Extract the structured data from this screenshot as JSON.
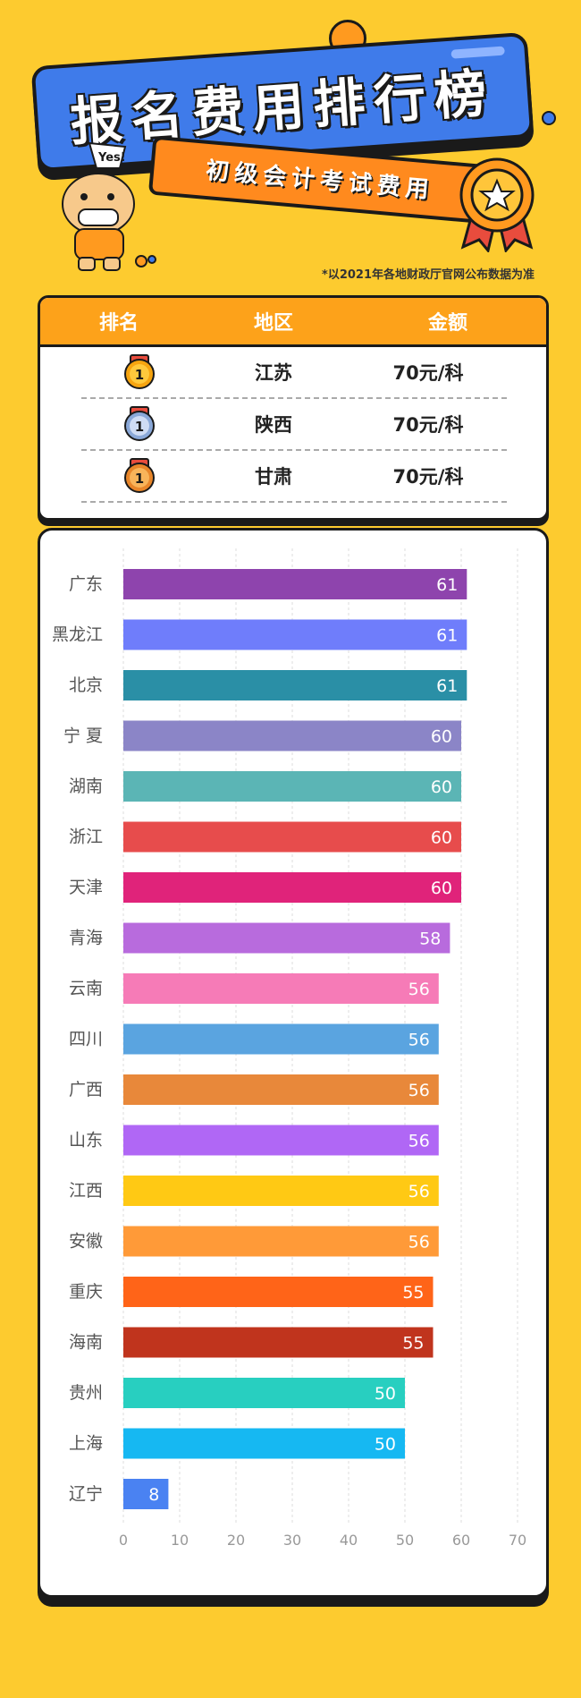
{
  "header": {
    "title": "报名费用排行榜",
    "subtitle": "初级会计考试费用",
    "mascot_bubble": "Yes!",
    "note": "*以2021年各地财政厅官网公布数据为准"
  },
  "table": {
    "headers": [
      "排名",
      "地区",
      "金额"
    ],
    "rows": [
      {
        "rank": "1",
        "region": "江苏",
        "amount": "70元/科",
        "medal": "gold"
      },
      {
        "rank": "1",
        "region": "陕西",
        "amount": "70元/科",
        "medal": "silver"
      },
      {
        "rank": "1",
        "region": "甘肃",
        "amount": "70元/科",
        "medal": "bronze"
      }
    ]
  },
  "colors": {
    "background": "#FDCB2F",
    "title_banner": "#3F7BEA",
    "sub_banner": "#FF8A1E",
    "table_header": "#FDA21A"
  },
  "chart_data": {
    "type": "bar",
    "orientation": "horizontal",
    "categories": [
      "广东",
      "黑龙江",
      "北京",
      "宁 夏",
      "湖南",
      "浙江",
      "天津",
      "青海",
      "云南",
      "四川",
      "广西",
      "山东",
      "江西",
      "安徽",
      "重庆",
      "海南",
      "贵州",
      "上海",
      "辽宁"
    ],
    "values": [
      61,
      61,
      61,
      60,
      60,
      60,
      60,
      58,
      56,
      56,
      56,
      56,
      56,
      56,
      55,
      55,
      50,
      50,
      8
    ],
    "colors": [
      "#8E44AD",
      "#6F7DFB",
      "#2A8FA6",
      "#8B85C7",
      "#5BB5B5",
      "#E74C4C",
      "#E0237A",
      "#B86BDD",
      "#F67BB7",
      "#5AA4E0",
      "#E8883A",
      "#B067F5",
      "#FFC914",
      "#FF9A38",
      "#FF6418",
      "#C0341D",
      "#28CFC0",
      "#16B8F2",
      "#4A82F2"
    ],
    "xlim": [
      0,
      70
    ],
    "xticks": [
      0,
      10,
      20,
      30,
      40,
      50,
      60,
      70
    ],
    "grid": true
  }
}
